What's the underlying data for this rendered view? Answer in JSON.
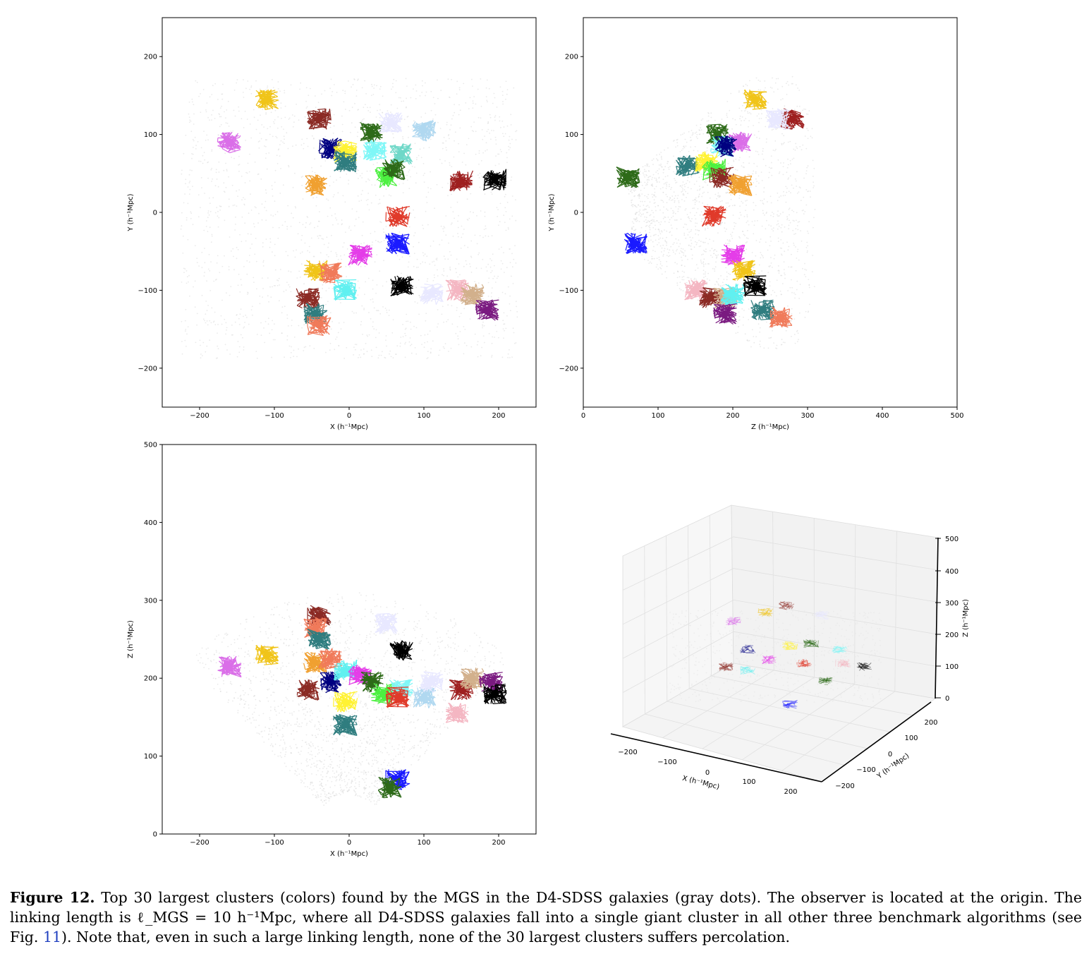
{
  "figure": {
    "label": "Figure 12.",
    "caption_part1": " Top 30 largest clusters (colors) found by the MGS in the D4-SDSS galaxies (gray dots). The observer is located at the origin. The linking length is ",
    "caption_math": "ℓ_MGS = 10 h⁻¹Mpc",
    "caption_part2": ", where all D4-SDSS galaxies fall into a single giant cluster in all other three benchmark algorithms (see Fig. ",
    "caption_ref": "11",
    "caption_part3": "). Note that, even in such a large linking length, none of the 30 largest clusters suffers percolation."
  },
  "colors": {
    "background_points": "#d9d9d9",
    "cluster_palette": [
      "#f0c419",
      "#8b2a24",
      "#da6ee8",
      "#2d6a18",
      "#000080",
      "#fff233",
      "#2f7d7f",
      "#7ff7f7",
      "#64e88a",
      "#f0a030",
      "#e03a2a",
      "#1a1aff",
      "#e43de8",
      "#f07a5a",
      "#60f0f0",
      "#000000",
      "#9e2020",
      "#e8e8ff",
      "#f4b6c2",
      "#d2b08c",
      "#7a1a80",
      "#4cf040",
      "#b0d8f0"
    ]
  },
  "panels": [
    {
      "id": "xy",
      "xlabel": "X (h⁻¹Mpc)",
      "ylabel": "Y (h⁻¹Mpc)",
      "xlim": [
        -250,
        250
      ],
      "ylim": [
        -250,
        250
      ],
      "xticks": [
        -200,
        -100,
        0,
        100,
        200
      ],
      "yticks": [
        -200,
        -100,
        0,
        100,
        200
      ],
      "xtick_labels": [
        "−200",
        "−100",
        "0",
        "100",
        "200"
      ],
      "ytick_labels": [
        "−200",
        "−100",
        "0",
        "100",
        "200"
      ]
    },
    {
      "id": "zy",
      "xlabel": "Z (h⁻¹Mpc)",
      "ylabel": "Y (h⁻¹Mpc)",
      "xlim": [
        0,
        500
      ],
      "ylim": [
        -250,
        250
      ],
      "xticks": [
        0,
        100,
        200,
        300,
        400,
        500
      ],
      "yticks": [
        -200,
        -100,
        0,
        100,
        200
      ],
      "xtick_labels": [
        "0",
        "100",
        "200",
        "300",
        "400",
        "500"
      ],
      "ytick_labels": [
        "−200",
        "−100",
        "0",
        "100",
        "200"
      ]
    },
    {
      "id": "xz",
      "xlabel": "X (h⁻¹Mpc)",
      "ylabel": "Z (h⁻¹Mpc)",
      "xlim": [
        -250,
        250
      ],
      "ylim": [
        0,
        500
      ],
      "xticks": [
        -200,
        -100,
        0,
        100,
        200
      ],
      "yticks": [
        0,
        100,
        200,
        300,
        400,
        500
      ],
      "xtick_labels": [
        "−200",
        "−100",
        "0",
        "100",
        "200"
      ],
      "ytick_labels": [
        "0",
        "100",
        "200",
        "300",
        "400",
        "500"
      ]
    },
    {
      "id": "xyz3d",
      "xlabel": "X (h⁻¹Mpc)",
      "ylabel": "Y (h⁻¹Mpc)",
      "zlabel": "Z (h⁻¹Mpc)",
      "xtick_labels": [
        "−200",
        "−100",
        "0",
        "100",
        "200"
      ],
      "ytick_labels": [
        "−200",
        "−100",
        "0",
        "100",
        "200"
      ],
      "ztick_labels": [
        "0",
        "100",
        "200",
        "300",
        "400",
        "500"
      ]
    }
  ],
  "chart_data": [
    {
      "type": "scatter",
      "title": "",
      "xlabel": "X (h⁻¹Mpc)",
      "ylabel": "Y (h⁻¹Mpc)",
      "xlim": [
        -250,
        250
      ],
      "ylim": [
        -250,
        250
      ],
      "series": [
        {
          "color": "#f0c419",
          "x": [
            -110
          ],
          "y": [
            145
          ]
        },
        {
          "color": "#8b2a24",
          "x": [
            -40
          ],
          "y": [
            120
          ]
        },
        {
          "color": "#da6ee8",
          "x": [
            -160
          ],
          "y": [
            90
          ]
        },
        {
          "color": "#2d6a18",
          "x": [
            30
          ],
          "y": [
            102
          ]
        },
        {
          "color": "#e8e8ff",
          "x": [
            55
          ],
          "y": [
            115
          ]
        },
        {
          "color": "#b0d8f0",
          "x": [
            100
          ],
          "y": [
            105
          ]
        },
        {
          "color": "#000080",
          "x": [
            -25
          ],
          "y": [
            82
          ]
        },
        {
          "color": "#fff233",
          "x": [
            -5
          ],
          "y": [
            78
          ]
        },
        {
          "color": "#2f7d7f",
          "x": [
            -5
          ],
          "y": [
            65
          ]
        },
        {
          "color": "#7ff7f7",
          "x": [
            35
          ],
          "y": [
            80
          ]
        },
        {
          "color": "#6fd8c8",
          "x": [
            70
          ],
          "y": [
            75
          ]
        },
        {
          "color": "#4cf040",
          "x": [
            50
          ],
          "y": [
            45
          ]
        },
        {
          "color": "#2d6a18",
          "x": [
            60
          ],
          "y": [
            55
          ]
        },
        {
          "color": "#f0a030",
          "x": [
            -45
          ],
          "y": [
            35
          ]
        },
        {
          "color": "#9e2020",
          "x": [
            150
          ],
          "y": [
            40
          ]
        },
        {
          "color": "#000000",
          "x": [
            195
          ],
          "y": [
            42
          ]
        },
        {
          "color": "#e03a2a",
          "x": [
            65
          ],
          "y": [
            -5
          ]
        },
        {
          "color": "#1a1aff",
          "x": [
            65
          ],
          "y": [
            -40
          ]
        },
        {
          "color": "#e43de8",
          "x": [
            15
          ],
          "y": [
            -55
          ]
        },
        {
          "color": "#f0c419",
          "x": [
            -45
          ],
          "y": [
            -75
          ]
        },
        {
          "color": "#f07a5a",
          "x": [
            -25
          ],
          "y": [
            -78
          ]
        },
        {
          "color": "#60f0f0",
          "x": [
            -5
          ],
          "y": [
            -100
          ]
        },
        {
          "color": "#000000",
          "x": [
            70
          ],
          "y": [
            -95
          ]
        },
        {
          "color": "#e8e8ff",
          "x": [
            110
          ],
          "y": [
            -105
          ]
        },
        {
          "color": "#f4b6c2",
          "x": [
            145
          ],
          "y": [
            -100
          ]
        },
        {
          "color": "#d2b08c",
          "x": [
            165
          ],
          "y": [
            -105
          ]
        },
        {
          "color": "#7a1a80",
          "x": [
            185
          ],
          "y": [
            -125
          ]
        },
        {
          "color": "#8b2a24",
          "x": [
            -55
          ],
          "y": [
            -110
          ]
        },
        {
          "color": "#2f7d7f",
          "x": [
            -45
          ],
          "y": [
            -130
          ]
        },
        {
          "color": "#f07a5a",
          "x": [
            -40
          ],
          "y": [
            -145
          ]
        }
      ]
    },
    {
      "type": "scatter",
      "title": "",
      "xlabel": "Z (h⁻¹Mpc)",
      "ylabel": "Y (h⁻¹Mpc)",
      "xlim": [
        0,
        500
      ],
      "ylim": [
        -250,
        250
      ],
      "series": [
        {
          "color": "#f0c419",
          "x": [
            230
          ],
          "y": [
            145
          ]
        },
        {
          "color": "#9e2020",
          "x": [
            280
          ],
          "y": [
            120
          ]
        },
        {
          "color": "#e8e8ff",
          "x": [
            260
          ],
          "y": [
            120
          ]
        },
        {
          "color": "#2d6a18",
          "x": [
            60
          ],
          "y": [
            45
          ]
        },
        {
          "color": "#1a1aff",
          "x": [
            70
          ],
          "y": [
            -40
          ]
        },
        {
          "color": "#2f7d7f",
          "x": [
            140
          ],
          "y": [
            60
          ]
        },
        {
          "color": "#2d6a18",
          "x": [
            180
          ],
          "y": [
            100
          ]
        },
        {
          "color": "#da6ee8",
          "x": [
            210
          ],
          "y": [
            90
          ]
        },
        {
          "color": "#7ff7f7",
          "x": [
            185
          ],
          "y": [
            85
          ]
        },
        {
          "color": "#000080",
          "x": [
            190
          ],
          "y": [
            85
          ]
        },
        {
          "color": "#fff233",
          "x": [
            165
          ],
          "y": [
            65
          ]
        },
        {
          "color": "#4cf040",
          "x": [
            175
          ],
          "y": [
            55
          ]
        },
        {
          "color": "#8b2a24",
          "x": [
            185
          ],
          "y": [
            45
          ]
        },
        {
          "color": "#f0a030",
          "x": [
            210
          ],
          "y": [
            35
          ]
        },
        {
          "color": "#e03a2a",
          "x": [
            175
          ],
          "y": [
            -5
          ]
        },
        {
          "color": "#e43de8",
          "x": [
            200
          ],
          "y": [
            -55
          ]
        },
        {
          "color": "#f0c419",
          "x": [
            215
          ],
          "y": [
            -75
          ]
        },
        {
          "color": "#000000",
          "x": [
            230
          ],
          "y": [
            -95
          ]
        },
        {
          "color": "#f4b6c2",
          "x": [
            150
          ],
          "y": [
            -100
          ]
        },
        {
          "color": "#8b2a24",
          "x": [
            170
          ],
          "y": [
            -110
          ]
        },
        {
          "color": "#d2b08c",
          "x": [
            190
          ],
          "y": [
            -110
          ]
        },
        {
          "color": "#60f0f0",
          "x": [
            200
          ],
          "y": [
            -105
          ]
        },
        {
          "color": "#7a1a80",
          "x": [
            190
          ],
          "y": [
            -130
          ]
        },
        {
          "color": "#2f7d7f",
          "x": [
            240
          ],
          "y": [
            -125
          ]
        },
        {
          "color": "#f07a5a",
          "x": [
            265
          ],
          "y": [
            -135
          ]
        }
      ]
    },
    {
      "type": "scatter",
      "title": "",
      "xlabel": "X (h⁻¹Mpc)",
      "ylabel": "Z (h⁻¹Mpc)",
      "xlim": [
        -250,
        250
      ],
      "ylim": [
        0,
        500
      ],
      "series": [
        {
          "color": "#da6ee8",
          "x": [
            -160
          ],
          "y": [
            215
          ]
        },
        {
          "color": "#f0c419",
          "x": [
            -110
          ],
          "y": [
            230
          ]
        },
        {
          "color": "#8b2a24",
          "x": [
            -40
          ],
          "y": [
            280
          ]
        },
        {
          "color": "#f07a5a",
          "x": [
            -45
          ],
          "y": [
            265
          ]
        },
        {
          "color": "#2f7d7f",
          "x": [
            -40
          ],
          "y": [
            250
          ]
        },
        {
          "color": "#f0a030",
          "x": [
            -45
          ],
          "y": [
            220
          ]
        },
        {
          "color": "#f07a5a",
          "x": [
            -25
          ],
          "y": [
            225
          ]
        },
        {
          "color": "#e8e8ff",
          "x": [
            50
          ],
          "y": [
            270
          ]
        },
        {
          "color": "#000000",
          "x": [
            70
          ],
          "y": [
            235
          ]
        },
        {
          "color": "#8b2a24",
          "x": [
            -55
          ],
          "y": [
            185
          ]
        },
        {
          "color": "#000080",
          "x": [
            -25
          ],
          "y": [
            195
          ]
        },
        {
          "color": "#60f0f0",
          "x": [
            -5
          ],
          "y": [
            210
          ]
        },
        {
          "color": "#e43de8",
          "x": [
            15
          ],
          "y": [
            205
          ]
        },
        {
          "color": "#fff233",
          "x": [
            -5
          ],
          "y": [
            170
          ]
        },
        {
          "color": "#2f7d7f",
          "x": [
            -5
          ],
          "y": [
            140
          ]
        },
        {
          "color": "#2d6a18",
          "x": [
            30
          ],
          "y": [
            195
          ]
        },
        {
          "color": "#4cf040",
          "x": [
            45
          ],
          "y": [
            180
          ]
        },
        {
          "color": "#7ff7f7",
          "x": [
            70
          ],
          "y": [
            185
          ]
        },
        {
          "color": "#e03a2a",
          "x": [
            65
          ],
          "y": [
            175
          ]
        },
        {
          "color": "#b0d8f0",
          "x": [
            100
          ],
          "y": [
            175
          ]
        },
        {
          "color": "#e8e8ff",
          "x": [
            110
          ],
          "y": [
            195
          ]
        },
        {
          "color": "#9e2020",
          "x": [
            150
          ],
          "y": [
            185
          ]
        },
        {
          "color": "#d2b08c",
          "x": [
            165
          ],
          "y": [
            200
          ]
        },
        {
          "color": "#7a1a80",
          "x": [
            190
          ],
          "y": [
            195
          ]
        },
        {
          "color": "#000000",
          "x": [
            195
          ],
          "y": [
            180
          ]
        },
        {
          "color": "#f4b6c2",
          "x": [
            145
          ],
          "y": [
            155
          ]
        },
        {
          "color": "#1a1aff",
          "x": [
            65
          ],
          "y": [
            70
          ]
        },
        {
          "color": "#2d6a18",
          "x": [
            55
          ],
          "y": [
            60
          ]
        }
      ]
    },
    {
      "type": "scatter",
      "title": "",
      "xlabel": "X (h⁻¹Mpc)",
      "ylabel": "Y (h⁻¹Mpc)",
      "zlabel": "Z (h⁻¹Mpc)",
      "projection": "3d",
      "xlim": [
        -250,
        250
      ],
      "ylim": [
        -250,
        250
      ],
      "zlim": [
        0,
        500
      ]
    }
  ]
}
